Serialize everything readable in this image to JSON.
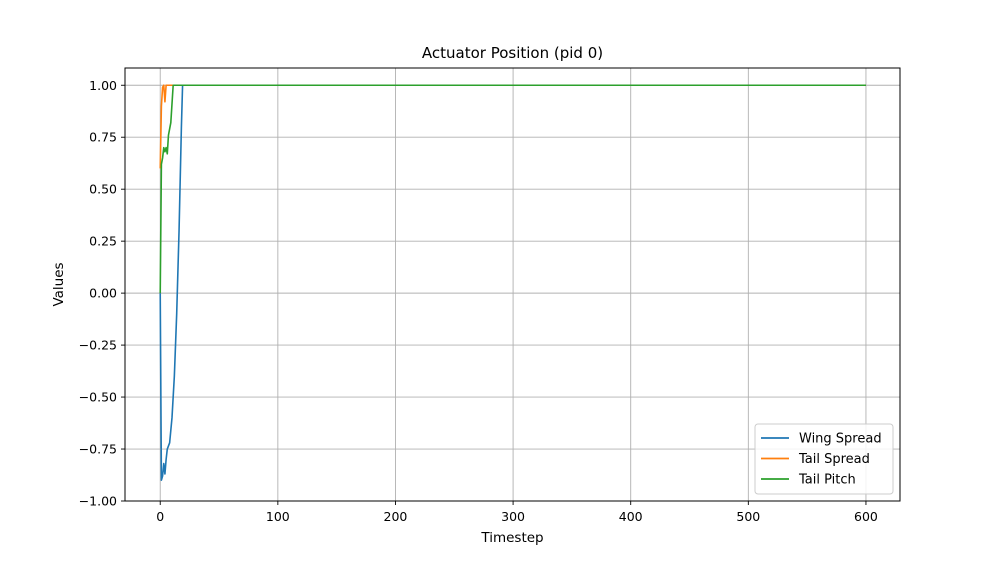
{
  "chart_data": {
    "type": "line",
    "title": "Actuator Position (pid 0)",
    "xlabel": "Timestep",
    "ylabel": "Values",
    "xlim": [
      -29.95,
      628.95
    ],
    "ylim": [
      -1.0,
      1.0
    ],
    "xticks": [
      0,
      100,
      200,
      300,
      400,
      500,
      600
    ],
    "yticks": [
      -1.0,
      -0.75,
      -0.5,
      -0.25,
      0.0,
      0.25,
      0.5,
      0.75,
      1.0
    ],
    "xtick_labels": [
      "0",
      "100",
      "200",
      "300",
      "400",
      "500",
      "600"
    ],
    "ytick_labels": [
      "−1.00",
      "−0.75",
      "−0.50",
      "−0.25",
      "0.00",
      "0.25",
      "0.50",
      "0.75",
      "1.00"
    ],
    "grid": true,
    "legend_position": "lower-right",
    "series": [
      {
        "name": "Wing Spread",
        "color": "#1f77b4",
        "points": [
          [
            0,
            0.0
          ],
          [
            1,
            -0.9
          ],
          [
            2,
            -0.88
          ],
          [
            3,
            -0.82
          ],
          [
            4,
            -0.87
          ],
          [
            5,
            -0.8
          ],
          [
            6,
            -0.75
          ],
          [
            8,
            -0.72
          ],
          [
            10,
            -0.6
          ],
          [
            12,
            -0.4
          ],
          [
            14,
            -0.1
          ],
          [
            16,
            0.3
          ],
          [
            18,
            0.8
          ],
          [
            19,
            1.0
          ],
          [
            600,
            1.0
          ]
        ]
      },
      {
        "name": "Tail Spread",
        "color": "#ff7f0e",
        "points": [
          [
            0,
            0.6
          ],
          [
            1,
            0.9
          ],
          [
            2,
            0.99
          ],
          [
            3,
            1.0
          ],
          [
            4,
            0.92
          ],
          [
            5,
            1.0
          ],
          [
            600,
            1.0
          ]
        ]
      },
      {
        "name": "Tail Pitch",
        "color": "#2ca02c",
        "points": [
          [
            0,
            0.0
          ],
          [
            1,
            0.62
          ],
          [
            2,
            0.65
          ],
          [
            3,
            0.7
          ],
          [
            4,
            0.68
          ],
          [
            5,
            0.7
          ],
          [
            6,
            0.67
          ],
          [
            7,
            0.76
          ],
          [
            9,
            0.82
          ],
          [
            11,
            1.0
          ],
          [
            600,
            1.0
          ]
        ]
      }
    ]
  }
}
